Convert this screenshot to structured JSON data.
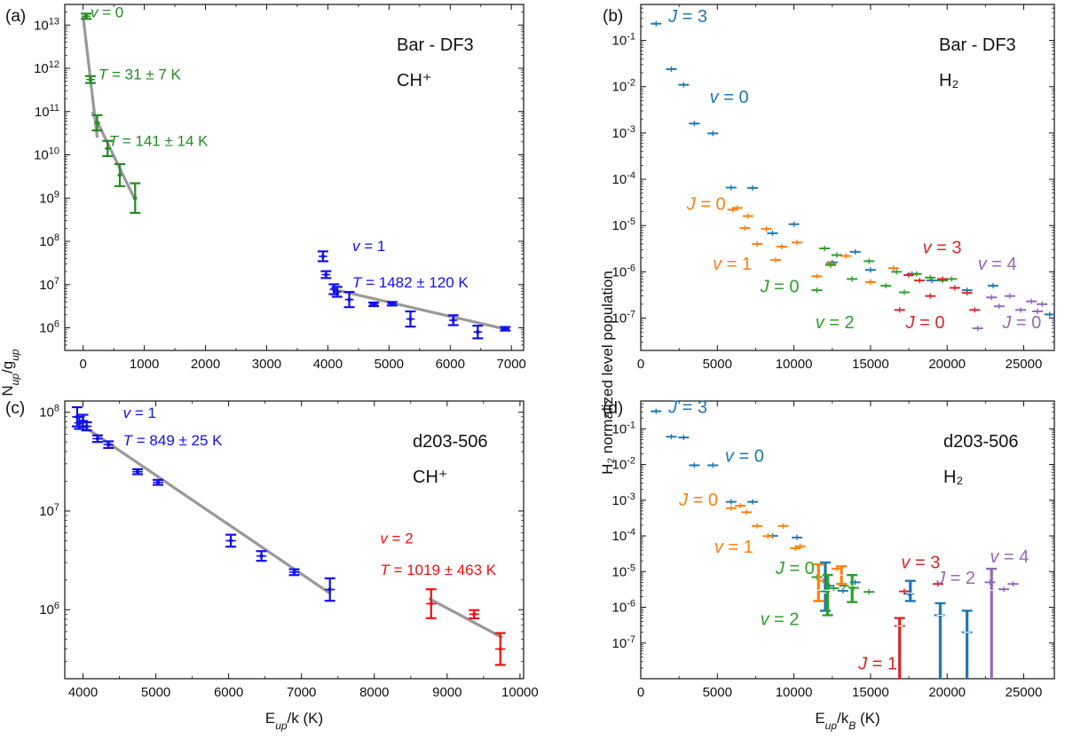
{
  "colors": {
    "green": "#228B22",
    "blue": "#1010EE",
    "red": "#EE1111",
    "h2_blue": "#1f77b4",
    "h2_orange": "#ff7f0e",
    "h2_green": "#2ca02c",
    "h2_red": "#d62728",
    "h2_purple": "#9467bd",
    "fit_line": "#999999"
  },
  "chart_data": [
    {
      "id": "a",
      "type": "scatter",
      "panel_label": "(a)",
      "title_lines": [
        "Bar - DF3",
        "CH⁺"
      ],
      "xlabel": "",
      "ylabel": "N_up/g_up",
      "xscale": "linear",
      "yscale": "log",
      "xlim": [
        -300,
        7200
      ],
      "ylim": [
        300000,
        30000000000000
      ],
      "xticks": [
        0,
        1000,
        2000,
        3000,
        4000,
        5000,
        6000,
        7000
      ],
      "yticks_exp": [
        6,
        7,
        8,
        9,
        10,
        11,
        12,
        13
      ],
      "series": [
        {
          "name": "v = 0",
          "color": "green",
          "x": [
            50,
            120,
            230,
            400,
            600,
            850
          ],
          "y": [
            16000000000000,
            550000000000,
            55000000000,
            14000000000,
            3400000000,
            1000000000
          ],
          "yerr_factor": [
            1.15,
            1.2,
            1.5,
            1.5,
            1.8,
            2.2
          ],
          "xerr": [
            70,
            70,
            50,
            50,
            40,
            30
          ]
        },
        {
          "name": "v = 1",
          "color": "blue",
          "x": [
            3920,
            3970,
            4100,
            4150,
            4350,
            4750,
            5050,
            5350,
            6050,
            6450,
            6900
          ],
          "y": [
            45000000,
            17000000,
            7800000,
            6800000,
            4500000,
            3500000,
            3600000,
            1600000,
            1500000,
            800000,
            950000
          ],
          "yerr_factor": [
            1.3,
            1.2,
            1.3,
            1.3,
            1.5,
            1.1,
            1.1,
            1.5,
            1.3,
            1.4,
            1.1
          ],
          "xerr": [
            70,
            70,
            70,
            70,
            70,
            70,
            70,
            70,
            70,
            70,
            70
          ]
        }
      ],
      "fits": [
        {
          "color": "fit_line",
          "x": [
            0,
            230
          ],
          "y": [
            16000000000000,
            25000000000
          ]
        },
        {
          "color": "fit_line",
          "x": [
            150,
            850
          ],
          "y": [
            100000000000,
            900000000
          ]
        },
        {
          "color": "fit_line",
          "x": [
            4050,
            6950
          ],
          "y": [
            8000000,
            900000
          ]
        }
      ],
      "annotations": [
        {
          "text": "v = 0",
          "color": "green",
          "x": 120,
          "y": 15000000000000
        },
        {
          "text": "T =  31 ± 7 K",
          "color": "green",
          "x": 250,
          "y": 550000000000
        },
        {
          "text": "T =  141 ± 14 K",
          "color": "green",
          "x": 420,
          "y": 16000000000
        },
        {
          "text": "v = 1",
          "color": "blue",
          "x": 4400,
          "y": 60000000
        },
        {
          "text": "T =  1482 ± 120 K",
          "color": "blue",
          "x": 4400,
          "y": 8500000
        }
      ]
    },
    {
      "id": "b",
      "type": "scatter",
      "panel_label": "(b)",
      "title_lines": [
        "Bar - DF3",
        "H₂"
      ],
      "xlabel": "",
      "ylabel": "",
      "xscale": "linear",
      "yscale": "log",
      "xlim": [
        0,
        27000
      ],
      "ylim": [
        2e-08,
        0.6
      ],
      "xticks": [
        0,
        5000,
        10000,
        15000,
        20000,
        25000
      ],
      "yticks_exp": [
        -7,
        -6,
        -5,
        -4,
        -3,
        -2,
        -1
      ],
      "series": [
        {
          "name": "v = 0",
          "color": "h2_blue",
          "x": [
            1000,
            2000,
            2800,
            3500,
            4700,
            5900,
            7300,
            8600,
            10000,
            12500,
            14000,
            15000,
            17700,
            19000,
            21300,
            23000,
            26700
          ],
          "y": [
            0.23,
            0.024,
            0.011,
            0.0016,
            0.00098,
            6.6e-05,
            6.5e-05,
            6.8e-06,
            1.07e-05,
            1.6e-06,
            2.7e-06,
            1.1e-06,
            9e-07,
            6.5e-07,
            4e-07,
            5e-07,
            1.2e-07
          ]
        },
        {
          "name": "v = 1",
          "color": "h2_orange",
          "x": [
            6000,
            6300,
            6800,
            7000,
            7600,
            8200,
            8800,
            9200,
            10200,
            11500,
            12400,
            13400,
            15000,
            16500
          ],
          "y": [
            2.2e-05,
            2.4e-05,
            8.8e-06,
            1.6e-05,
            4e-06,
            8.5e-06,
            1.8e-06,
            3.5e-06,
            4.3e-06,
            8e-07,
            1.5e-06,
            2.2e-06,
            6e-07,
            1.2e-06
          ]
        },
        {
          "name": "v = 2",
          "color": "h2_green",
          "x": [
            11500,
            12000,
            12400,
            12800,
            13800,
            14900,
            16000,
            16700,
            17200,
            18000,
            18900,
            19700,
            20300
          ],
          "y": [
            4e-07,
            3.2e-06,
            1.4e-06,
            2.3e-06,
            7e-07,
            1.7e-06,
            5e-07,
            1e-06,
            3.6e-07,
            9e-07,
            7.5e-07,
            6.5e-07,
            7e-07
          ]
        },
        {
          "name": "v = 3",
          "color": "h2_red",
          "x": [
            16900,
            17500,
            18200,
            18900,
            19700,
            20500,
            21300,
            21800
          ],
          "y": [
            1.5e-07,
            8.5e-07,
            6.5e-07,
            3e-07,
            7e-07,
            4.5e-07,
            3.5e-07,
            1.5e-07
          ]
        },
        {
          "name": "v = 4",
          "color": "h2_purple",
          "x": [
            22000,
            22900,
            23400,
            24100,
            24800,
            25500,
            25900,
            26200
          ],
          "y": [
            6e-08,
            2.8e-07,
            1.8e-07,
            3e-07,
            1.5e-07,
            2.3e-07,
            1.4e-07,
            2e-07
          ]
        }
      ],
      "annotations": [
        {
          "text": "J = 3",
          "color": "h2_blue",
          "x": 1800,
          "y": 0.25
        },
        {
          "text": "v = 0",
          "color": "h2_blue",
          "x": 4500,
          "y": 0.0045
        },
        {
          "text": "J = 0",
          "color": "h2_orange",
          "x": 3000,
          "y": 2.2e-05
        },
        {
          "text": "v = 1",
          "color": "h2_orange",
          "x": 4700,
          "y": 1.1e-06
        },
        {
          "text": "J = 0",
          "color": "h2_green",
          "x": 7800,
          "y": 3.6e-07
        },
        {
          "text": "v = 2",
          "color": "h2_green",
          "x": 11400,
          "y": 6e-08
        },
        {
          "text": "v = 3",
          "color": "h2_red",
          "x": 18400,
          "y": 2.5e-06
        },
        {
          "text": "J = 0",
          "color": "h2_red",
          "x": 17300,
          "y": 6e-08
        },
        {
          "text": "v = 4",
          "color": "h2_purple",
          "x": 22000,
          "y": 1.1e-06
        },
        {
          "text": "J = 0",
          "color": "h2_purple",
          "x": 23600,
          "y": 6e-08
        }
      ]
    },
    {
      "id": "c",
      "type": "scatter",
      "panel_label": "(c)",
      "title_lines": [
        "d203-506",
        "CH⁺"
      ],
      "xlabel": "E_up/k (K)",
      "ylabel": "",
      "xscale": "linear",
      "yscale": "log",
      "xlim": [
        3750,
        10050
      ],
      "ylim": [
        200000,
        130000000
      ],
      "xticks": [
        4000,
        5000,
        6000,
        7000,
        8000,
        9000,
        10000
      ],
      "yticks_exp": [
        6,
        7,
        8
      ],
      "series": [
        {
          "name": "v = 1",
          "color": "blue",
          "x": [
            3920,
            3950,
            4000,
            4050,
            4200,
            4350,
            4750,
            5030,
            6030,
            6450,
            6900,
            7390
          ],
          "y": [
            90000000,
            78000000,
            82000000,
            72000000,
            54000000,
            47000000,
            25000000,
            19500000,
            5000000,
            3500000,
            2400000,
            1600000
          ],
          "yerr_factor": [
            1.25,
            1.15,
            1.15,
            1.1,
            1.08,
            1.08,
            1.06,
            1.06,
            1.15,
            1.12,
            1.07,
            1.3
          ],
          "xerr": [
            70,
            70,
            70,
            70,
            70,
            70,
            70,
            70,
            70,
            70,
            70,
            70
          ]
        },
        {
          "name": "v = 2",
          "color": "red",
          "x": [
            8780,
            9370,
            9730
          ],
          "y": [
            1150000,
            900000,
            400000
          ],
          "yerr_factor": [
            1.4,
            1.1,
            1.45
          ],
          "xerr": [
            70,
            70,
            70
          ]
        }
      ],
      "fits": [
        {
          "color": "fit_line",
          "x": [
            3920,
            7400
          ],
          "y": [
            80000000,
            1450000
          ]
        },
        {
          "color": "fit_line",
          "x": [
            8750,
            9760
          ],
          "y": [
            1300000,
            520000
          ]
        }
      ],
      "annotations": [
        {
          "text": "v = 1",
          "color": "blue",
          "x": 4550,
          "y": 88000000
        },
        {
          "text": "T =  849 ± 25 K",
          "color": "blue",
          "x": 4550,
          "y": 46000000
        },
        {
          "text": "v = 2",
          "color": "red",
          "x": 8080,
          "y": 4700000
        },
        {
          "text": "T =  1019 ± 463 K",
          "color": "red",
          "x": 8080,
          "y": 2250000
        }
      ]
    },
    {
      "id": "d",
      "type": "scatter",
      "panel_label": "(d)",
      "title_lines": [
        "d203-506",
        "H₂"
      ],
      "xlabel": "E_up/k_B (K)",
      "ylabel": "H₂ normalized level population",
      "xscale": "linear",
      "yscale": "log",
      "xlim": [
        0,
        27000
      ],
      "ylim": [
        1e-08,
        0.6
      ],
      "xticks": [
        0,
        5000,
        10000,
        15000,
        20000,
        25000
      ],
      "yticks_exp": [
        -7,
        -6,
        -5,
        -4,
        -3,
        -2,
        -1
      ],
      "series": [
        {
          "name": "v = 0",
          "color": "h2_blue",
          "x": [
            1000,
            2000,
            2800,
            3500,
            4700,
            5900,
            7300,
            8600,
            10200,
            12300,
            13200,
            14000,
            17500,
            19500,
            21300
          ],
          "y": [
            0.31,
            0.06,
            0.057,
            0.0095,
            0.0095,
            0.0009,
            0.0009,
            0.0001,
            9e-05,
            4e-06,
            2.9e-06,
            5e-06,
            2.4e-06,
            6e-07,
            2e-07
          ]
        },
        {
          "name": "v = 1",
          "color": "h2_orange",
          "x": [
            5900,
            6500,
            6900,
            7600,
            8300,
            9300,
            10100,
            10400,
            11900,
            12800
          ],
          "y": [
            0.0006,
            0.0007,
            0.00046,
            0.00019,
            9.8e-05,
            0.00019,
            4.5e-05,
            5.1e-05,
            5.5e-06,
            1.2e-05
          ]
        },
        {
          "name": "v = 2",
          "color": "h2_green",
          "x": [
            11500,
            12000,
            12600,
            13300,
            13900,
            14900
          ],
          "y": [
            7e-06,
            2.8e-06,
            3.4e-06,
            4e-06,
            3.5e-06,
            2.7e-06
          ]
        },
        {
          "name": "v = 3",
          "color": "h2_red",
          "x": [
            16900,
            17200,
            19400
          ],
          "y": [
            3e-07,
            2.8e-06,
            4.5e-06
          ]
        },
        {
          "name": "v = 4",
          "color": "h2_purple",
          "x": [
            22800,
            23700,
            24300
          ],
          "y": [
            5e-06,
            3.2e-06,
            4.5e-06
          ]
        }
      ],
      "annotations": [
        {
          "text": "J = 3",
          "color": "h2_blue",
          "x": 1800,
          "y": 0.28
        },
        {
          "text": "v = 0",
          "color": "h2_blue",
          "x": 5500,
          "y": 0.012
        },
        {
          "text": "J = 0",
          "color": "h2_orange",
          "x": 2500,
          "y": 0.0007
        },
        {
          "text": "v = 1",
          "color": "h2_orange",
          "x": 4800,
          "y": 3.4e-05
        },
        {
          "text": "J = 0",
          "color": "h2_green",
          "x": 8800,
          "y": 8.5e-06
        },
        {
          "text": "v = 2",
          "color": "h2_green",
          "x": 7800,
          "y": 3.2e-07
        },
        {
          "text": "v = 3",
          "color": "h2_red",
          "x": 17000,
          "y": 1.25e-05
        },
        {
          "text": "J = 2",
          "color": "h2_purple",
          "x": 19300,
          "y": 4.5e-06
        },
        {
          "text": "J = 1",
          "color": "h2_red",
          "x": 14200,
          "y": 1.8e-08
        },
        {
          "text": "v = 4",
          "color": "h2_purple",
          "x": 22800,
          "y": 1.8e-05
        }
      ]
    }
  ]
}
